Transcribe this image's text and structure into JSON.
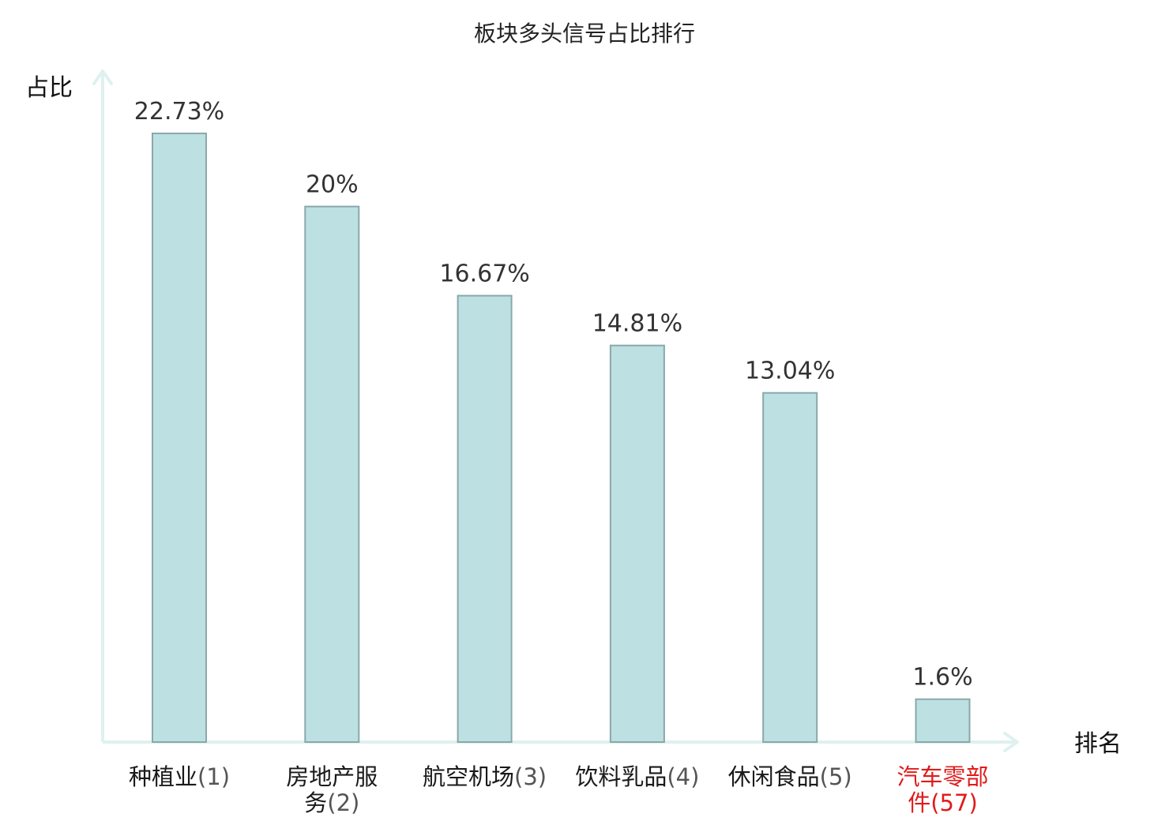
{
  "chart_data": {
    "type": "bar",
    "title": "板块多头信号占比排行",
    "ylabel": "占比",
    "xlabel": "排名",
    "ylim": [
      0,
      25
    ],
    "grid": false,
    "legend": "none",
    "categories": [
      {
        "name_lines": [
          "种植业"
        ],
        "rank": "(1)",
        "value": 22.73,
        "label": "22.73%",
        "highlight": false
      },
      {
        "name_lines": [
          "房地产服",
          "务"
        ],
        "rank": "(2)",
        "value": 20,
        "label": "20%",
        "highlight": false
      },
      {
        "name_lines": [
          "航空机场"
        ],
        "rank": "(3)",
        "value": 16.67,
        "label": "16.67%",
        "highlight": false
      },
      {
        "name_lines": [
          "饮料乳品"
        ],
        "rank": "(4)",
        "value": 14.81,
        "label": "14.81%",
        "highlight": false
      },
      {
        "name_lines": [
          "休闲食品"
        ],
        "rank": "(5)",
        "value": 13.04,
        "label": "13.04%",
        "highlight": false
      },
      {
        "name_lines": [
          "汽车零部",
          "件"
        ],
        "rank": "(57)",
        "value": 1.6,
        "label": "1.6%",
        "highlight": true
      }
    ],
    "colors": {
      "bar_fill": "#bde0e2",
      "bar_stroke": "#8aa8aa",
      "axis": "#dff1ef",
      "highlight_text": "#e01b1b",
      "normal_text": "#1a1a1a",
      "rank_text": "#555555"
    }
  }
}
